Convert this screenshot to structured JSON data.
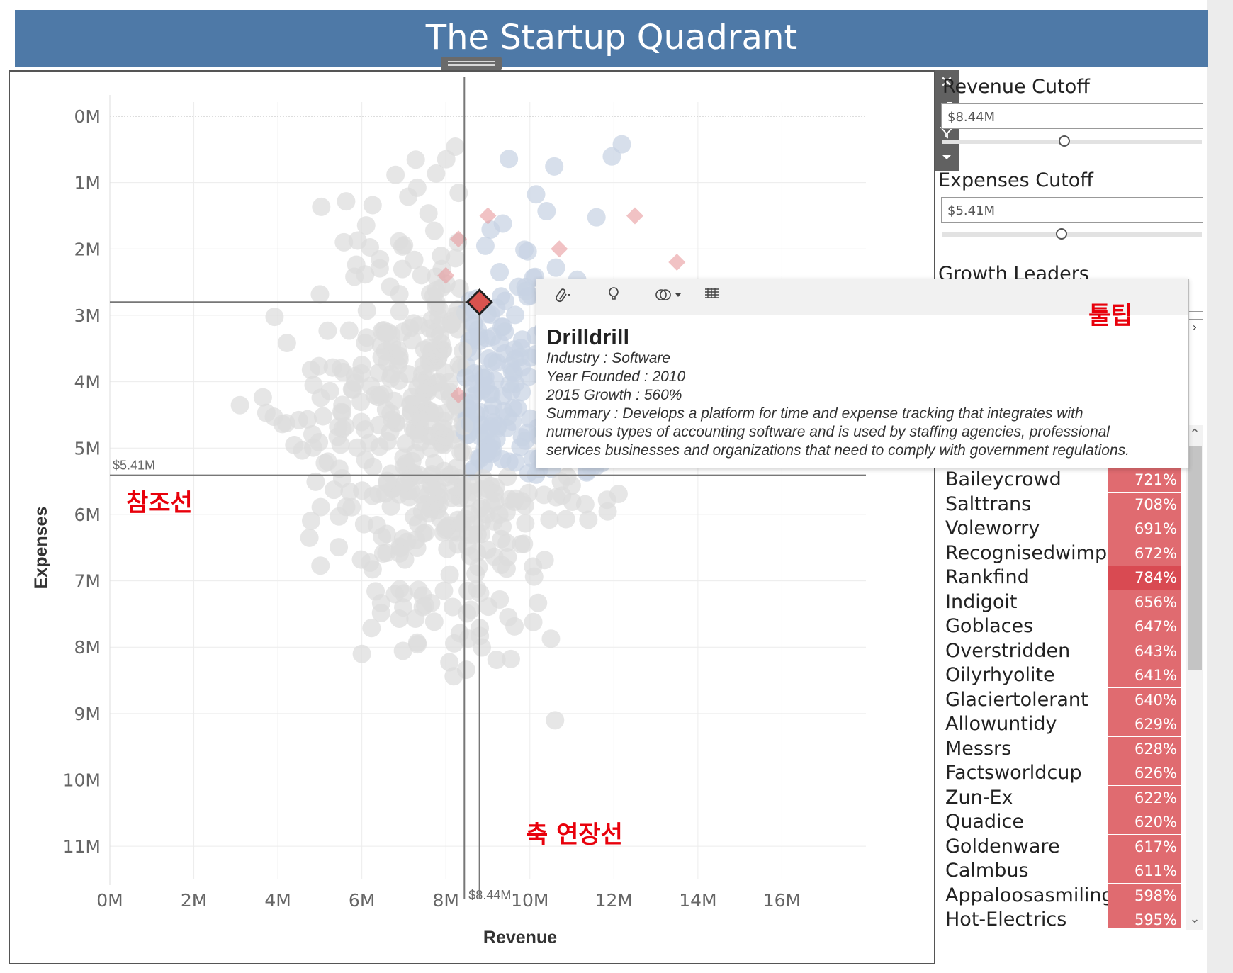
{
  "dashboard": {
    "title": "The Startup Quadrant"
  },
  "viz_toolbar": {
    "close_icon": "close-icon",
    "popout_icon": "open-external-icon",
    "filter_icon": "filter-icon",
    "menu_icon": "dropdown-arrow-icon"
  },
  "parameters": {
    "revenue_cutoff": {
      "label": "Revenue Cutoff",
      "value": "$8.44M",
      "slider_fraction": 0.47
    },
    "expenses_cutoff": {
      "label": "Expenses Cutoff",
      "value": "$5.41M",
      "slider_fraction": 0.46
    }
  },
  "growth_leaders": {
    "title": "Growth Leaders",
    "items": [
      {
        "name": "Baileycrowd",
        "growth": "721%"
      },
      {
        "name": "Salttrans",
        "growth": "708%"
      },
      {
        "name": "Voleworry",
        "growth": "691%"
      },
      {
        "name": "Recognisedwimp",
        "growth": "672%"
      },
      {
        "name": "Rankfind",
        "growth": "784%"
      },
      {
        "name": "Indigoit",
        "growth": "656%"
      },
      {
        "name": "Goblaces",
        "growth": "647%"
      },
      {
        "name": "Overstridden",
        "growth": "643%"
      },
      {
        "name": "Oilyrhyolite",
        "growth": "641%"
      },
      {
        "name": "Glaciertolerant",
        "growth": "640%"
      },
      {
        "name": "Allowuntidy",
        "growth": "629%"
      },
      {
        "name": "Messrs",
        "growth": "628%"
      },
      {
        "name": "Factsworldcup",
        "growth": "626%"
      },
      {
        "name": "Zun-Ex",
        "growth": "622%"
      },
      {
        "name": "Quadice",
        "growth": "620%"
      },
      {
        "name": "Goldenware",
        "growth": "617%"
      },
      {
        "name": "Calmbus",
        "growth": "611%"
      },
      {
        "name": "Appaloosasmiling",
        "growth": "598%"
      },
      {
        "name": "Hot-Electrics",
        "growth": "595%"
      }
    ],
    "bar_color": "#e06b70",
    "highlight_color": "#d94a52"
  },
  "tooltip": {
    "title": "Drilldrill",
    "lines": [
      "Industry : Software",
      "Year Founded : 2010",
      "2015 Growth : 560%",
      "Summary : Develops a platform for time and expense tracking that integrates with",
      "numerous types of accounting software and is used by staffing agencies, professional",
      "services businesses and organizations that need to comply with government regulations."
    ],
    "tools": [
      "paperclip-icon",
      "lightbulb-icon",
      "group-icon",
      "view-data-icon"
    ]
  },
  "annotations": {
    "tooltip_label": "툴팁",
    "reference_line_label": "참조선",
    "axis_extension_label": "축 연장선"
  },
  "chart_data": {
    "type": "scatter",
    "xlabel": "Revenue",
    "ylabel": "Expenses",
    "x_ticks": [
      "0M",
      "2M",
      "4M",
      "6M",
      "8M",
      "10M",
      "12M",
      "14M",
      "16M"
    ],
    "y_ticks": [
      "0M",
      "1M",
      "2M",
      "3M",
      "4M",
      "5M",
      "6M",
      "7M",
      "8M",
      "9M",
      "10M",
      "11M"
    ],
    "xlim": [
      0,
      18
    ],
    "ylim": [
      0,
      11.5
    ],
    "y_reversed": true,
    "grid": true,
    "reference_lines": {
      "revenue": {
        "value": 8.44,
        "label": "$8.44M"
      },
      "expenses": {
        "value": 5.41,
        "label": "$5.41M"
      }
    },
    "selected_point": {
      "name": "Drilldrill",
      "revenue": 8.8,
      "expenses": 2.8
    },
    "colors": {
      "default": "#dcdcdc",
      "quadrant": "#c8d3e3",
      "growth": "#e79a9c",
      "selected": "#d9534f"
    },
    "point_count_note": "",
    "seed": 7
  }
}
